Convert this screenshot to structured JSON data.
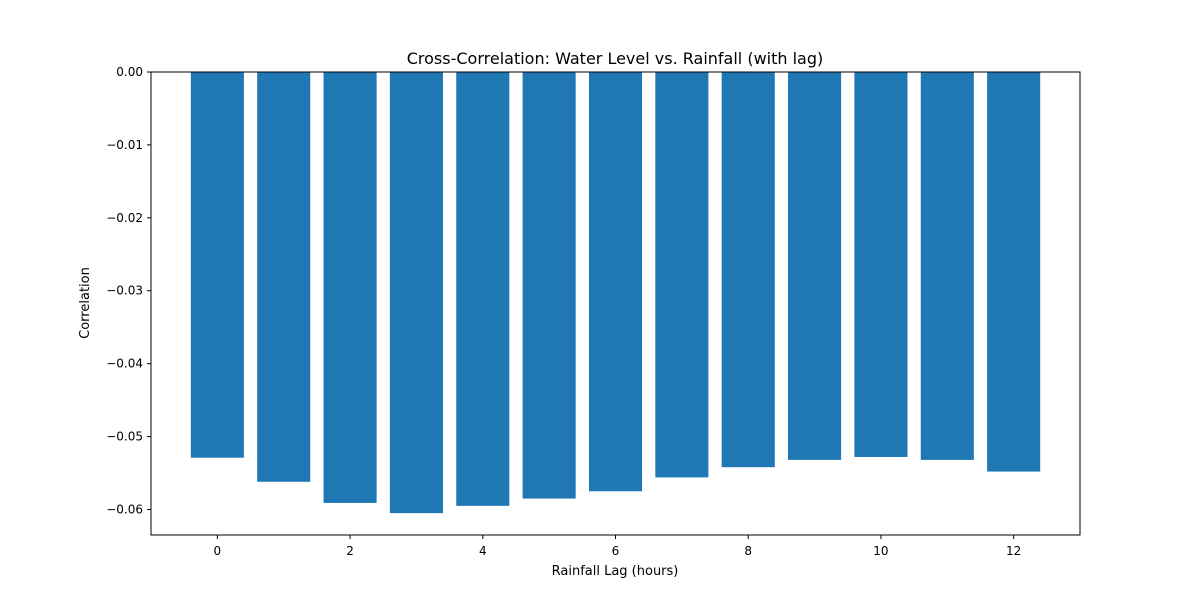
{
  "chart_data": {
    "type": "bar",
    "title": "Cross-Correlation: Water Level vs. Rainfall (with lag)",
    "xlabel": "Rainfall Lag (hours)",
    "ylabel": "Correlation",
    "x": [
      0,
      1,
      2,
      3,
      4,
      5,
      6,
      7,
      8,
      9,
      10,
      11,
      12
    ],
    "values": [
      -0.0529,
      -0.0562,
      -0.0591,
      -0.0605,
      -0.0595,
      -0.0585,
      -0.0575,
      -0.0556,
      -0.0542,
      -0.0532,
      -0.0528,
      -0.0532,
      -0.0548
    ],
    "xlim": [
      -1,
      13
    ],
    "ylim": [
      -0.0635,
      0.0
    ],
    "xticks": [
      0,
      2,
      4,
      6,
      8,
      10,
      12
    ],
    "xtick_labels": [
      "0",
      "2",
      "4",
      "6",
      "8",
      "10",
      "12"
    ],
    "yticks": [
      0.0,
      -0.01,
      -0.02,
      -0.03,
      -0.04,
      -0.05,
      -0.06
    ],
    "ytick_labels": [
      "0.00",
      "−0.01",
      "−0.02",
      "−0.03",
      "−0.04",
      "−0.05",
      "−0.06"
    ],
    "bar_color": "#1f77b4",
    "grid": false,
    "legend": "none"
  }
}
